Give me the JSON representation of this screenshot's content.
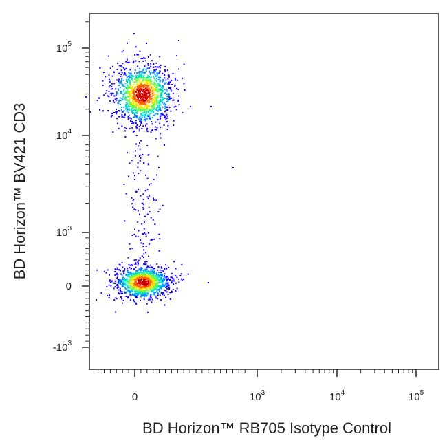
{
  "chart_data": {
    "type": "scatter",
    "xlabel": "BD Horizon™ RB705 Isotype Control",
    "ylabel": "BD Horizon™ BV421  CD3",
    "x_scale": "biexponential",
    "y_scale": "biexponential",
    "xlim": [
      -300,
      100000
    ],
    "ylim": [
      -3000,
      200000
    ],
    "x_ticks": [
      {
        "value": 0,
        "base": "0",
        "exp": ""
      },
      {
        "value": 1000,
        "base": "10",
        "exp": "3"
      },
      {
        "value": 10000,
        "base": "10",
        "exp": "4"
      },
      {
        "value": 100000,
        "base": "10",
        "exp": "5"
      }
    ],
    "y_ticks": [
      {
        "value": -1000,
        "base": "-10",
        "exp": "3"
      },
      {
        "value": 0,
        "base": "0",
        "exp": ""
      },
      {
        "value": 1000,
        "base": "10",
        "exp": "3"
      },
      {
        "value": 10000,
        "base": "10",
        "exp": "4"
      },
      {
        "value": 100000,
        "base": "10",
        "exp": "5"
      }
    ],
    "populations": [
      {
        "center_x": 60,
        "center_y": 30000,
        "description": "CD3+ cluster"
      },
      {
        "center_x": 60,
        "center_y": 80,
        "description": "CD3- cluster"
      }
    ],
    "color_scale": [
      "#1400ff",
      "#0090ff",
      "#00e0c0",
      "#60ff40",
      "#ffe000",
      "#ff6000",
      "#d00000"
    ],
    "grid": false,
    "legend": "none"
  }
}
